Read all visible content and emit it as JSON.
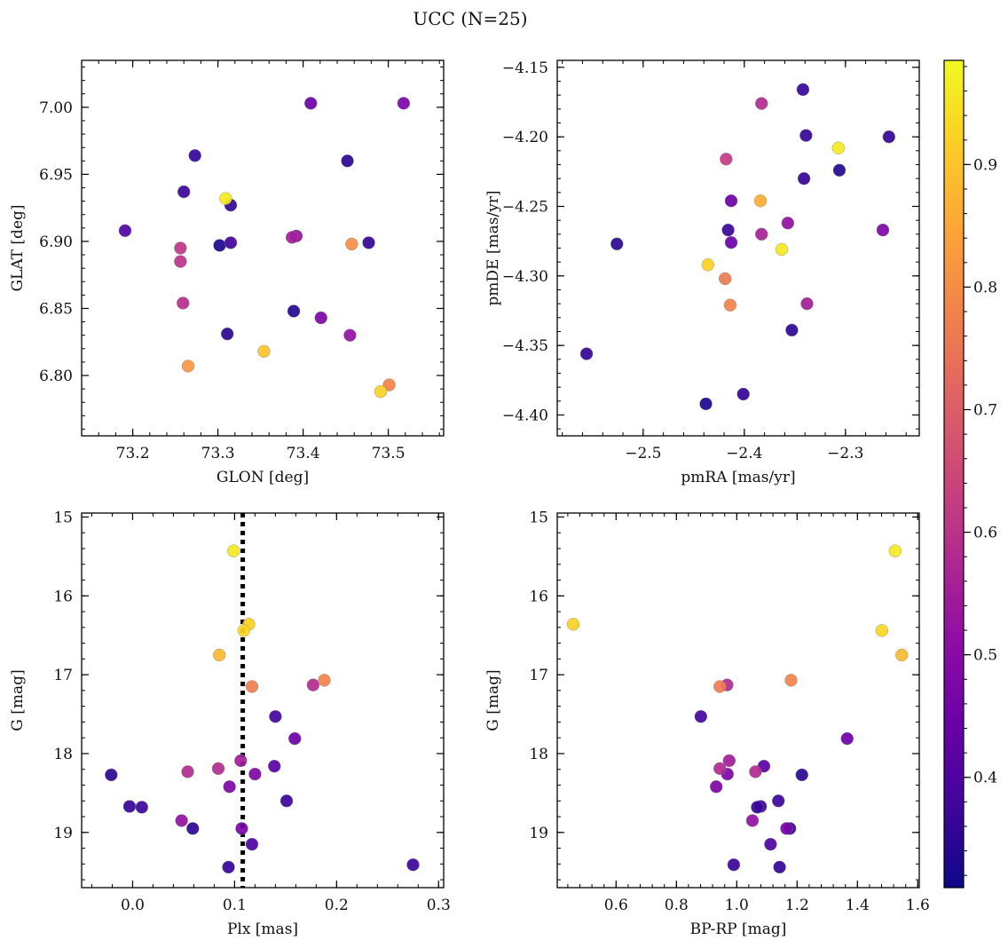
{
  "figure_title": "UCC (N=25)",
  "colorbar": {
    "vmin": 0.31,
    "vmax": 0.985,
    "ticks": [
      0.4,
      0.5,
      0.6,
      0.7,
      0.8,
      0.9
    ],
    "tick_labels": [
      "0.4",
      "0.5",
      "0.6",
      "0.7",
      "0.8",
      "0.9"
    ],
    "colormap": "plasma"
  },
  "chart_data": [
    {
      "type": "scatter",
      "title": "",
      "xlabel": "GLON [deg]",
      "ylabel": "GLAT [deg]",
      "xlim": [
        73.14,
        73.565
      ],
      "ylim": [
        6.755,
        7.035
      ],
      "xticks": [
        73.2,
        73.3,
        73.4,
        73.5
      ],
      "xtick_labels": [
        "73.2",
        "73.3",
        "73.4",
        "73.5"
      ],
      "yticks": [
        6.8,
        6.85,
        6.9,
        6.95,
        7.0
      ],
      "ytick_labels": [
        "6.80",
        "6.85",
        "6.90",
        "6.95",
        "7.00"
      ],
      "y_inverted": false,
      "points": [
        {
          "x": 73.409,
          "y": 7.003,
          "c": 0.45
        },
        {
          "x": 73.518,
          "y": 7.003,
          "c": 0.47
        },
        {
          "x": 73.273,
          "y": 6.964,
          "c": 0.36
        },
        {
          "x": 73.452,
          "y": 6.96,
          "c": 0.35
        },
        {
          "x": 73.26,
          "y": 6.937,
          "c": 0.37
        },
        {
          "x": 73.309,
          "y": 6.932,
          "c": 0.96
        },
        {
          "x": 73.315,
          "y": 6.927,
          "c": 0.36
        },
        {
          "x": 73.191,
          "y": 6.908,
          "c": 0.4
        },
        {
          "x": 73.387,
          "y": 6.903,
          "c": 0.55
        },
        {
          "x": 73.392,
          "y": 6.904,
          "c": 0.52
        },
        {
          "x": 73.315,
          "y": 6.899,
          "c": 0.38
        },
        {
          "x": 73.302,
          "y": 6.897,
          "c": 0.33
        },
        {
          "x": 73.477,
          "y": 6.899,
          "c": 0.36
        },
        {
          "x": 73.457,
          "y": 6.898,
          "c": 0.8
        },
        {
          "x": 73.256,
          "y": 6.895,
          "c": 0.61
        },
        {
          "x": 73.256,
          "y": 6.885,
          "c": 0.6
        },
        {
          "x": 73.259,
          "y": 6.854,
          "c": 0.59
        },
        {
          "x": 73.389,
          "y": 6.848,
          "c": 0.34
        },
        {
          "x": 73.421,
          "y": 6.843,
          "c": 0.48
        },
        {
          "x": 73.311,
          "y": 6.831,
          "c": 0.35
        },
        {
          "x": 73.455,
          "y": 6.83,
          "c": 0.52
        },
        {
          "x": 73.354,
          "y": 6.818,
          "c": 0.9
        },
        {
          "x": 73.265,
          "y": 6.807,
          "c": 0.82
        },
        {
          "x": 73.501,
          "y": 6.793,
          "c": 0.78
        },
        {
          "x": 73.491,
          "y": 6.788,
          "c": 0.92
        }
      ]
    },
    {
      "type": "scatter",
      "title": "",
      "xlabel": "pmRA [mas/yr]",
      "ylabel": "pmDE [mas/yr]",
      "xlim": [
        -2.585,
        -2.227
      ],
      "ylim": [
        -4.415,
        -4.145
      ],
      "xticks": [
        -2.5,
        -2.4,
        -2.3
      ],
      "xtick_labels": [
        "−2.5",
        "−2.4",
        "−2.3"
      ],
      "yticks": [
        -4.4,
        -4.35,
        -4.3,
        -4.25,
        -4.2,
        -4.15
      ],
      "ytick_labels": [
        "−4.40",
        "−4.35",
        "−4.30",
        "−4.25",
        "−4.20",
        "−4.15"
      ],
      "y_inverted": false,
      "points": [
        {
          "x": -2.342,
          "y": -4.166,
          "c": 0.36
        },
        {
          "x": -2.383,
          "y": -4.176,
          "c": 0.58
        },
        {
          "x": -2.339,
          "y": -4.199,
          "c": 0.36
        },
        {
          "x": -2.257,
          "y": -4.2,
          "c": 0.36
        },
        {
          "x": -2.307,
          "y": -4.208,
          "c": 0.96
        },
        {
          "x": -2.418,
          "y": -4.216,
          "c": 0.62
        },
        {
          "x": -2.306,
          "y": -4.224,
          "c": 0.34
        },
        {
          "x": -2.341,
          "y": -4.23,
          "c": 0.36
        },
        {
          "x": -2.413,
          "y": -4.246,
          "c": 0.45
        },
        {
          "x": -2.384,
          "y": -4.246,
          "c": 0.86
        },
        {
          "x": -2.357,
          "y": -4.262,
          "c": 0.52
        },
        {
          "x": -2.263,
          "y": -4.267,
          "c": 0.48
        },
        {
          "x": -2.416,
          "y": -4.267,
          "c": 0.37
        },
        {
          "x": -2.383,
          "y": -4.27,
          "c": 0.56
        },
        {
          "x": -2.413,
          "y": -4.276,
          "c": 0.45
        },
        {
          "x": -2.526,
          "y": -4.277,
          "c": 0.35
        },
        {
          "x": -2.363,
          "y": -4.281,
          "c": 0.96
        },
        {
          "x": -2.436,
          "y": -4.292,
          "c": 0.92
        },
        {
          "x": -2.419,
          "y": -4.302,
          "c": 0.76
        },
        {
          "x": -2.414,
          "y": -4.321,
          "c": 0.78
        },
        {
          "x": -2.338,
          "y": -4.32,
          "c": 0.55
        },
        {
          "x": -2.353,
          "y": -4.339,
          "c": 0.35
        },
        {
          "x": -2.556,
          "y": -4.356,
          "c": 0.36
        },
        {
          "x": -2.401,
          "y": -4.385,
          "c": 0.36
        },
        {
          "x": -2.438,
          "y": -4.392,
          "c": 0.33
        }
      ]
    },
    {
      "type": "scatter",
      "title": "",
      "xlabel": "Plx [mas]",
      "ylabel": "G [mag]",
      "xlim": [
        -0.05,
        0.305
      ],
      "ylim": [
        19.7,
        14.95
      ],
      "xticks": [
        0.0,
        0.1,
        0.2,
        0.3
      ],
      "xtick_labels": [
        "0.0",
        "0.1",
        "0.2",
        "0.3"
      ],
      "yticks": [
        15,
        16,
        17,
        18,
        19
      ],
      "ytick_labels": [
        "15",
        "16",
        "17",
        "18",
        "19"
      ],
      "y_inverted": true,
      "vline": {
        "x": 0.108,
        "style": "dotted",
        "color": "#000000"
      },
      "points": [
        {
          "x": 0.099,
          "y": 15.43,
          "c": 0.96
        },
        {
          "x": 0.114,
          "y": 16.36,
          "c": 0.92
        },
        {
          "x": 0.109,
          "y": 16.44,
          "c": 0.93
        },
        {
          "x": 0.085,
          "y": 16.75,
          "c": 0.88
        },
        {
          "x": 0.188,
          "y": 17.07,
          "c": 0.78
        },
        {
          "x": 0.117,
          "y": 17.15,
          "c": 0.77
        },
        {
          "x": 0.177,
          "y": 17.13,
          "c": 0.58
        },
        {
          "x": 0.14,
          "y": 17.53,
          "c": 0.38
        },
        {
          "x": 0.159,
          "y": 17.81,
          "c": 0.45
        },
        {
          "x": 0.106,
          "y": 18.09,
          "c": 0.55
        },
        {
          "x": 0.084,
          "y": 18.19,
          "c": 0.58
        },
        {
          "x": 0.139,
          "y": 18.16,
          "c": 0.42
        },
        {
          "x": 0.054,
          "y": 18.23,
          "c": 0.58
        },
        {
          "x": 0.12,
          "y": 18.26,
          "c": 0.48
        },
        {
          "x": -0.021,
          "y": 18.27,
          "c": 0.35
        },
        {
          "x": 0.095,
          "y": 18.42,
          "c": 0.48
        },
        {
          "x": 0.151,
          "y": 18.6,
          "c": 0.37
        },
        {
          "x": -0.003,
          "y": 18.67,
          "c": 0.36
        },
        {
          "x": 0.009,
          "y": 18.68,
          "c": 0.37
        },
        {
          "x": 0.048,
          "y": 18.85,
          "c": 0.52
        },
        {
          "x": 0.059,
          "y": 18.95,
          "c": 0.35
        },
        {
          "x": 0.107,
          "y": 18.95,
          "c": 0.47
        },
        {
          "x": 0.117,
          "y": 19.15,
          "c": 0.4
        },
        {
          "x": 0.094,
          "y": 19.44,
          "c": 0.36
        },
        {
          "x": 0.275,
          "y": 19.41,
          "c": 0.37
        }
      ]
    },
    {
      "type": "scatter",
      "title": "",
      "xlabel": "BP-RP [mag]",
      "ylabel": "G [mag]",
      "xlim": [
        0.405,
        1.605
      ],
      "ylim": [
        19.7,
        14.95
      ],
      "xticks": [
        0.6,
        0.8,
        1.0,
        1.2,
        1.4,
        1.6
      ],
      "xtick_labels": [
        "0.6",
        "0.8",
        "1.0",
        "1.2",
        "1.4",
        "1.6"
      ],
      "yticks": [
        15,
        16,
        17,
        18,
        19
      ],
      "ytick_labels": [
        "15",
        "16",
        "17",
        "18",
        "19"
      ],
      "y_inverted": true,
      "points": [
        {
          "x": 1.525,
          "y": 15.43,
          "c": 0.96
        },
        {
          "x": 0.458,
          "y": 16.36,
          "c": 0.92
        },
        {
          "x": 1.481,
          "y": 16.44,
          "c": 0.93
        },
        {
          "x": 1.547,
          "y": 16.75,
          "c": 0.88
        },
        {
          "x": 1.18,
          "y": 17.07,
          "c": 0.78
        },
        {
          "x": 0.944,
          "y": 17.15,
          "c": 0.77
        },
        {
          "x": 0.968,
          "y": 17.13,
          "c": 0.58
        },
        {
          "x": 0.881,
          "y": 17.53,
          "c": 0.38
        },
        {
          "x": 1.366,
          "y": 17.81,
          "c": 0.45
        },
        {
          "x": 0.975,
          "y": 18.09,
          "c": 0.55
        },
        {
          "x": 0.944,
          "y": 18.19,
          "c": 0.58
        },
        {
          "x": 1.09,
          "y": 18.16,
          "c": 0.42
        },
        {
          "x": 1.062,
          "y": 18.23,
          "c": 0.58
        },
        {
          "x": 0.969,
          "y": 18.26,
          "c": 0.48
        },
        {
          "x": 1.216,
          "y": 18.27,
          "c": 0.35
        },
        {
          "x": 0.932,
          "y": 18.42,
          "c": 0.48
        },
        {
          "x": 1.138,
          "y": 18.6,
          "c": 0.37
        },
        {
          "x": 1.079,
          "y": 18.67,
          "c": 0.36
        },
        {
          "x": 1.068,
          "y": 18.68,
          "c": 0.37
        },
        {
          "x": 1.052,
          "y": 18.85,
          "c": 0.52
        },
        {
          "x": 1.176,
          "y": 18.95,
          "c": 0.35
        },
        {
          "x": 1.165,
          "y": 18.95,
          "c": 0.47
        },
        {
          "x": 1.112,
          "y": 19.15,
          "c": 0.4
        },
        {
          "x": 1.142,
          "y": 19.44,
          "c": 0.36
        },
        {
          "x": 0.99,
          "y": 19.41,
          "c": 0.37
        }
      ]
    }
  ]
}
